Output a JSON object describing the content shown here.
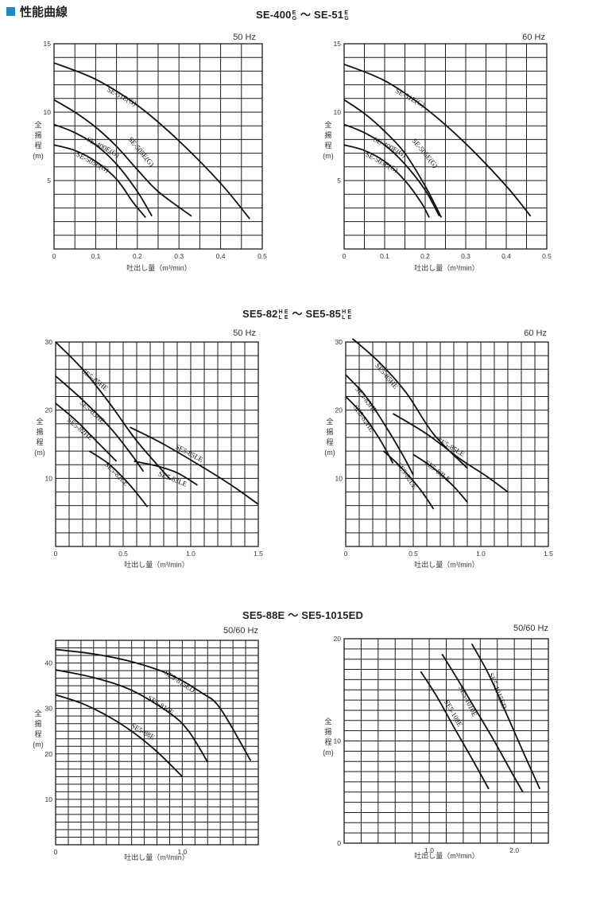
{
  "page_title": "性能曲線",
  "groups": [
    {
      "title_a": "SE-400",
      "sub_a": [
        "E",
        "G"
      ],
      "mid": " ～ ",
      "title_b": "SE-51",
      "sub_b": [
        "E",
        "G"
      ]
    },
    {
      "title_a": "SE5-82",
      "sub_a": [
        "H",
        "L"
      ],
      "sub_a2": [
        "E",
        "E"
      ],
      "mid": " ～ ",
      "title_b": "SE5-85",
      "sub_b": [
        "H",
        "L"
      ],
      "sub_b2": [
        "E",
        "E"
      ]
    },
    {
      "title": "SE5-88E ～ SE5-1015ED"
    }
  ],
  "chart_data": [
    {
      "type": "line",
      "freq": "50 Hz",
      "ylabel": [
        "全",
        "揚",
        "程",
        "(m)"
      ],
      "xlabel": "吐出し量（m³/min）",
      "xlim": [
        0,
        0.5
      ],
      "ylim": [
        0,
        15
      ],
      "xticks": [
        0,
        0.1,
        0.2,
        0.3,
        0.4,
        0.5
      ],
      "xtick_labels": [
        "0",
        "0.1",
        "0.2",
        "0.3",
        "0.4",
        "0.5"
      ],
      "yticks": [
        5,
        10,
        15
      ],
      "ytick_labels": [
        "5",
        "10",
        "15"
      ],
      "xgrid": 10,
      "ygrid": 15,
      "series": [
        {
          "name": "SE-51E(G)",
          "x": [
            0,
            0.1,
            0.2,
            0.3,
            0.4,
            0.47
          ],
          "y": [
            13.6,
            12.4,
            10.5,
            7.9,
            4.8,
            2.2
          ],
          "label_at": [
            0.16,
            11.0
          ],
          "label_angle": 28
        },
        {
          "name": "SE-505E(G)",
          "x": [
            0,
            0.05,
            0.1,
            0.15,
            0.2,
            0.25,
            0.33
          ],
          "y": [
            10.9,
            10.0,
            8.9,
            7.5,
            5.8,
            4.2,
            2.4
          ],
          "label_at": [
            0.205,
            7.0
          ],
          "label_angle": 50
        },
        {
          "name": "SE-400E(G)",
          "x": [
            0,
            0.05,
            0.1,
            0.15,
            0.2,
            0.235
          ],
          "y": [
            9.1,
            8.5,
            7.6,
            6.2,
            4.2,
            2.4
          ],
          "label_at": [
            0.115,
            7.3
          ],
          "label_angle": 28
        },
        {
          "name": "SE-503E(G)",
          "x": [
            0,
            0.05,
            0.1,
            0.15,
            0.19,
            0.22
          ],
          "y": [
            7.6,
            7.2,
            6.4,
            5.1,
            3.4,
            2.3
          ],
          "label_at": [
            0.09,
            6.2
          ],
          "label_angle": 28
        }
      ]
    },
    {
      "type": "line",
      "freq": "60 Hz",
      "ylabel": [
        "全",
        "揚",
        "程",
        "(m)"
      ],
      "xlabel": "吐出し量（m³/min）",
      "xlim": [
        0,
        0.5
      ],
      "ylim": [
        0,
        15
      ],
      "xticks": [
        0,
        0.1,
        0.2,
        0.3,
        0.4,
        0.5
      ],
      "xtick_labels": [
        "0",
        "0.1",
        "0.2",
        "0.3",
        "0.4",
        "0.5"
      ],
      "yticks": [
        5,
        10,
        15
      ],
      "ytick_labels": [
        "5",
        "10",
        "15"
      ],
      "xgrid": 10,
      "ygrid": 15,
      "series": [
        {
          "name": "SE-51E(G)",
          "x": [
            0,
            0.1,
            0.2,
            0.3,
            0.4,
            0.46
          ],
          "y": [
            13.5,
            12.3,
            10.3,
            7.7,
            4.6,
            2.4
          ],
          "label_at": [
            0.16,
            10.9
          ],
          "label_angle": 28
        },
        {
          "name": "SE-505E(G)",
          "x": [
            0,
            0.05,
            0.1,
            0.15,
            0.2,
            0.24
          ],
          "y": [
            10.9,
            9.9,
            8.6,
            7.0,
            4.6,
            2.3
          ],
          "label_at": [
            0.195,
            6.9
          ],
          "label_angle": 50
        },
        {
          "name": "SE-400E(G)",
          "x": [
            0,
            0.05,
            0.1,
            0.15,
            0.2,
            0.235
          ],
          "y": [
            9.1,
            8.5,
            7.6,
            6.2,
            4.3,
            2.4
          ],
          "label_at": [
            0.11,
            7.3
          ],
          "label_angle": 28
        },
        {
          "name": "SE-503E(G)",
          "x": [
            0,
            0.05,
            0.1,
            0.15,
            0.19,
            0.21
          ],
          "y": [
            7.6,
            7.2,
            6.4,
            5.0,
            3.4,
            2.3
          ],
          "label_at": [
            0.09,
            6.2
          ],
          "label_angle": 28
        }
      ]
    },
    {
      "type": "line",
      "freq": "50 Hz",
      "ylabel": [
        "全",
        "揚",
        "程",
        "(m)"
      ],
      "xlabel": "吐出し量（m³/min）",
      "xlim": [
        0,
        1.5
      ],
      "ylim": [
        0,
        30
      ],
      "xticks": [
        0,
        0.5,
        1.0,
        1.5
      ],
      "xtick_labels": [
        "0",
        "0.5",
        "1.0",
        "1.5"
      ],
      "yticks": [
        10,
        20,
        30
      ],
      "ytick_labels": [
        "10",
        "20",
        "30"
      ],
      "xgrid": 15,
      "ygrid": 15,
      "series": [
        {
          "name": "SE5-85HE",
          "x": [
            0,
            0.2,
            0.4,
            0.6,
            0.85
          ],
          "y": [
            30,
            26,
            21,
            15.5,
            9.8
          ],
          "label_at": [
            0.28,
            24.2
          ],
          "label_angle": 38
        },
        {
          "name": "SE5-83HE",
          "x": [
            0,
            0.2,
            0.4,
            0.55,
            0.65
          ],
          "y": [
            25,
            21.5,
            17.5,
            13.8,
            11.0
          ],
          "label_at": [
            0.26,
            19.5
          ],
          "label_angle": 42
        },
        {
          "name": "SE5-82HE",
          "x": [
            0,
            0.15,
            0.3,
            0.45
          ],
          "y": [
            21,
            18.5,
            15.5,
            12.5
          ],
          "label_at": [
            0.17,
            17.0
          ],
          "label_angle": 40
        },
        {
          "name": "SE5-85LE",
          "x": [
            0.55,
            0.8,
            1.1,
            1.3,
            1.5
          ],
          "y": [
            17.5,
            15.0,
            11.5,
            9.0,
            6.2
          ],
          "label_at": [
            0.98,
            13.4
          ],
          "label_angle": 28
        },
        {
          "name": "SE5-83LE",
          "x": [
            0.58,
            0.75,
            0.9,
            1.05
          ],
          "y": [
            12.5,
            11.8,
            10.8,
            9.0
          ],
          "label_at": [
            0.86,
            9.6
          ],
          "label_angle": 22
        },
        {
          "name": "SE5-82LE",
          "x": [
            0.25,
            0.4,
            0.55,
            0.68
          ],
          "y": [
            14.0,
            12.0,
            9.0,
            5.8
          ],
          "label_at": [
            0.44,
            10.4
          ],
          "label_angle": 45
        }
      ]
    },
    {
      "type": "line",
      "freq": "60 Hz",
      "ylabel": [
        "全",
        "揚",
        "程",
        "(m)"
      ],
      "xlabel": "吐出し量（m³/min）",
      "xlim": [
        0,
        1.5
      ],
      "ylim": [
        0,
        30
      ],
      "xticks": [
        0,
        0.5,
        1.0,
        1.5
      ],
      "xtick_labels": [
        "0",
        "0.5",
        "1.0",
        "1.5"
      ],
      "yticks": [
        10,
        20,
        30
      ],
      "ytick_labels": [
        "10",
        "20",
        "30"
      ],
      "xgrid": 15,
      "ygrid": 15,
      "series": [
        {
          "name": "SE5-85HE",
          "x": [
            0.05,
            0.25,
            0.45,
            0.65,
            0.9
          ],
          "y": [
            30.5,
            27.0,
            22.5,
            16.5,
            11.5
          ],
          "label_at": [
            0.29,
            24.8
          ],
          "label_angle": 50
        },
        {
          "name": "SE5-83HE",
          "x": [
            0,
            0.15,
            0.3,
            0.42,
            0.5
          ],
          "y": [
            25.2,
            22.0,
            17.5,
            13.5,
            10.5
          ],
          "label_at": [
            0.14,
            21.3
          ],
          "label_angle": 52
        },
        {
          "name": "SE5-82HE",
          "x": [
            0,
            0.12,
            0.25,
            0.35
          ],
          "y": [
            22.0,
            19.5,
            15.8,
            12.2
          ],
          "label_at": [
            0.12,
            18.6
          ],
          "label_angle": 55
        },
        {
          "name": "SE5-85LE",
          "x": [
            0.35,
            0.6,
            0.85,
            1.05,
            1.2
          ],
          "y": [
            19.5,
            16.5,
            12.8,
            10.2,
            8.0
          ],
          "label_at": [
            0.77,
            14.3
          ],
          "label_angle": 30
        },
        {
          "name": "SE5-83LE",
          "x": [
            0.5,
            0.65,
            0.8,
            0.9
          ],
          "y": [
            13.5,
            11.5,
            8.8,
            6.5
          ],
          "label_at": [
            0.67,
            10.8
          ],
          "label_angle": 38
        },
        {
          "name": "SE5-82LE",
          "x": [
            0.28,
            0.4,
            0.55,
            0.65
          ],
          "y": [
            14.0,
            11.8,
            8.4,
            5.5
          ],
          "label_at": [
            0.44,
            10.2
          ],
          "label_angle": 55
        }
      ]
    },
    {
      "type": "line",
      "freq": "50/60 Hz",
      "ylabel": [
        "全",
        "揚",
        "程",
        "(m)"
      ],
      "xlabel": "吐出し量（m³/min）",
      "xlim": [
        0,
        1.6
      ],
      "ylim": [
        0,
        45
      ],
      "xticks": [
        0,
        1.0
      ],
      "xtick_labels": [
        "0",
        "1.0"
      ],
      "yticks": [
        10,
        20,
        30,
        40
      ],
      "ytick_labels": [
        "10",
        "20",
        "30",
        "40"
      ],
      "xgrid": 16,
      "ygrid": 27,
      "series": [
        {
          "name": "SE5-815ED",
          "x": [
            0,
            0.3,
            0.6,
            0.9,
            1.15,
            1.3,
            1.54
          ],
          "y": [
            43.0,
            42.0,
            40.3,
            37.5,
            33.5,
            30.0,
            18.5
          ],
          "label_at": [
            0.97,
            35.5
          ],
          "label_angle": 33
        },
        {
          "name": "SE5-810E",
          "x": [
            0,
            0.3,
            0.6,
            0.9,
            1.05,
            1.2
          ],
          "y": [
            38.5,
            36.8,
            34.0,
            29.0,
            25.0,
            18.2
          ],
          "label_at": [
            0.82,
            30.3
          ],
          "label_angle": 33
        },
        {
          "name": "SE5-88E",
          "x": [
            0,
            0.2,
            0.4,
            0.6,
            0.8,
            1.0
          ],
          "y": [
            33.0,
            31.2,
            28.5,
            25.0,
            20.5,
            15.0
          ],
          "label_at": [
            0.68,
            24.5
          ],
          "label_angle": 30
        }
      ]
    },
    {
      "type": "line",
      "freq": "50/60 Hz",
      "ylabel": [
        "全",
        "揚",
        "程",
        "(m)"
      ],
      "xlabel": "吐出し量（m³/min）",
      "xlim": [
        0,
        2.4
      ],
      "ylim": [
        0,
        20
      ],
      "xticks": [
        1.0,
        2.0
      ],
      "xtick_labels": [
        "1.0",
        "2.0"
      ],
      "yticks": [
        0,
        10,
        20
      ],
      "ytick_labels": [
        "0",
        "10",
        "20"
      ],
      "xgrid": 12,
      "ygrid": 20,
      "series": [
        {
          "name": "SE5-1015ED",
          "x": [
            1.5,
            1.7,
            1.9,
            2.1,
            2.3
          ],
          "y": [
            19.5,
            16.5,
            12.8,
            9.0,
            5.3
          ],
          "label_at": [
            1.78,
            14.8
          ],
          "label_angle": 68
        },
        {
          "name": "SE5-1010E",
          "x": [
            1.15,
            1.35,
            1.55,
            1.75,
            1.95,
            2.1
          ],
          "y": [
            18.5,
            15.8,
            13.0,
            10.2,
            7.2,
            5.0
          ],
          "label_at": [
            1.43,
            13.8
          ],
          "label_angle": 64
        },
        {
          "name": "SE5-108E",
          "x": [
            0.9,
            1.1,
            1.3,
            1.5,
            1.7
          ],
          "y": [
            16.8,
            14.2,
            11.2,
            8.3,
            5.3
          ],
          "label_at": [
            1.26,
            12.6
          ],
          "label_angle": 60
        }
      ]
    }
  ]
}
